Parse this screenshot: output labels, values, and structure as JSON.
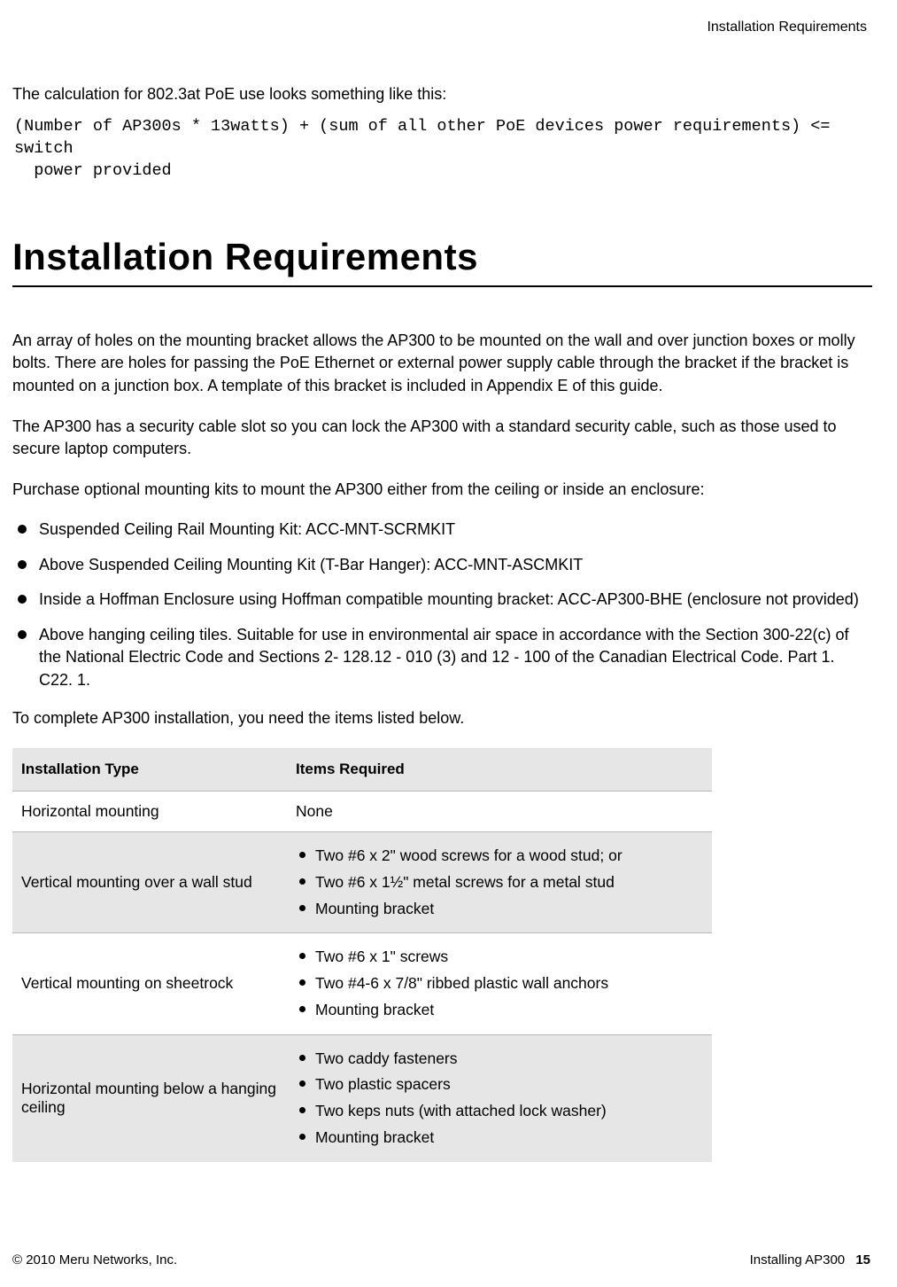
{
  "header": {
    "running_title": "Installation Requirements"
  },
  "intro": {
    "line": "The calculation for 802.3at PoE use looks something like this:",
    "code": "(Number of AP300s * 13watts) + (sum of all other PoE devices power requirements) <= switch\n  power provided"
  },
  "section": {
    "title": "Installation Requirements",
    "p1": "An array of holes on the mounting bracket allows the AP300 to be mounted on the wall and over junction boxes or molly bolts. There are holes for passing the PoE Ethernet or external power supply cable through the bracket if the bracket is mounted on a junction box. A template of this bracket is included in Appendix E of this guide.",
    "p2": "The AP300 has a security cable slot so you can lock the AP300 with a standard security cable, such as those used to secure laptop computers.",
    "p3": "Purchase optional mounting kits to mount the AP300 either from the ceiling or inside an enclosure:",
    "bullets": [
      "Suspended Ceiling Rail Mounting Kit: ACC-MNT-SCRMKIT",
      "Above Suspended Ceiling Mounting Kit (T-Bar Hanger): ACC-MNT-ASCMKIT",
      "Inside a Hoffman Enclosure using Hoffman compatible mounting bracket: ACC-AP300-BHE (enclosure not provided)",
      "Above hanging ceiling tiles. Suitable for use in environmental air space in accordance with the Section 300-22(c) of the National Electric Code and Sections 2- 128.12 - 010 (3) and 12 - 100 of the Canadian Electrical Code. Part 1. C22. 1."
    ],
    "p4": "To complete AP300 installation, you need the items listed below."
  },
  "table": {
    "headers": [
      "Installation Type",
      "Items Required"
    ],
    "rows": [
      {
        "type": "Horizontal mounting",
        "items_text": "None",
        "items_list": null,
        "shaded": false
      },
      {
        "type": "Vertical mounting over a wall stud",
        "items_text": null,
        "items_list": [
          "Two #6 x 2\" wood screws for a wood stud; or",
          "Two #6 x 1½\" metal screws for a metal stud",
          "Mounting bracket"
        ],
        "shaded": true
      },
      {
        "type": "Vertical mounting on sheetrock",
        "items_text": null,
        "items_list": [
          "Two #6 x 1\" screws",
          "Two #4-6 x 7/8\" ribbed plastic wall anchors",
          "Mounting bracket"
        ],
        "shaded": false
      },
      {
        "type": "Horizontal mounting below a hanging ceiling",
        "items_text": null,
        "items_list": [
          "Two caddy fasteners",
          "Two plastic spacers",
          "Two keps nuts (with attached lock washer)",
          "Mounting bracket"
        ],
        "shaded": true
      }
    ]
  },
  "footer": {
    "copyright": "© 2010 Meru Networks, Inc.",
    "chapter": "Installing AP300",
    "page": "15"
  },
  "colors": {
    "shaded_row": "#e6e6e6",
    "row_border": "#b8b8b8",
    "text": "#000000",
    "bg": "#ffffff"
  }
}
